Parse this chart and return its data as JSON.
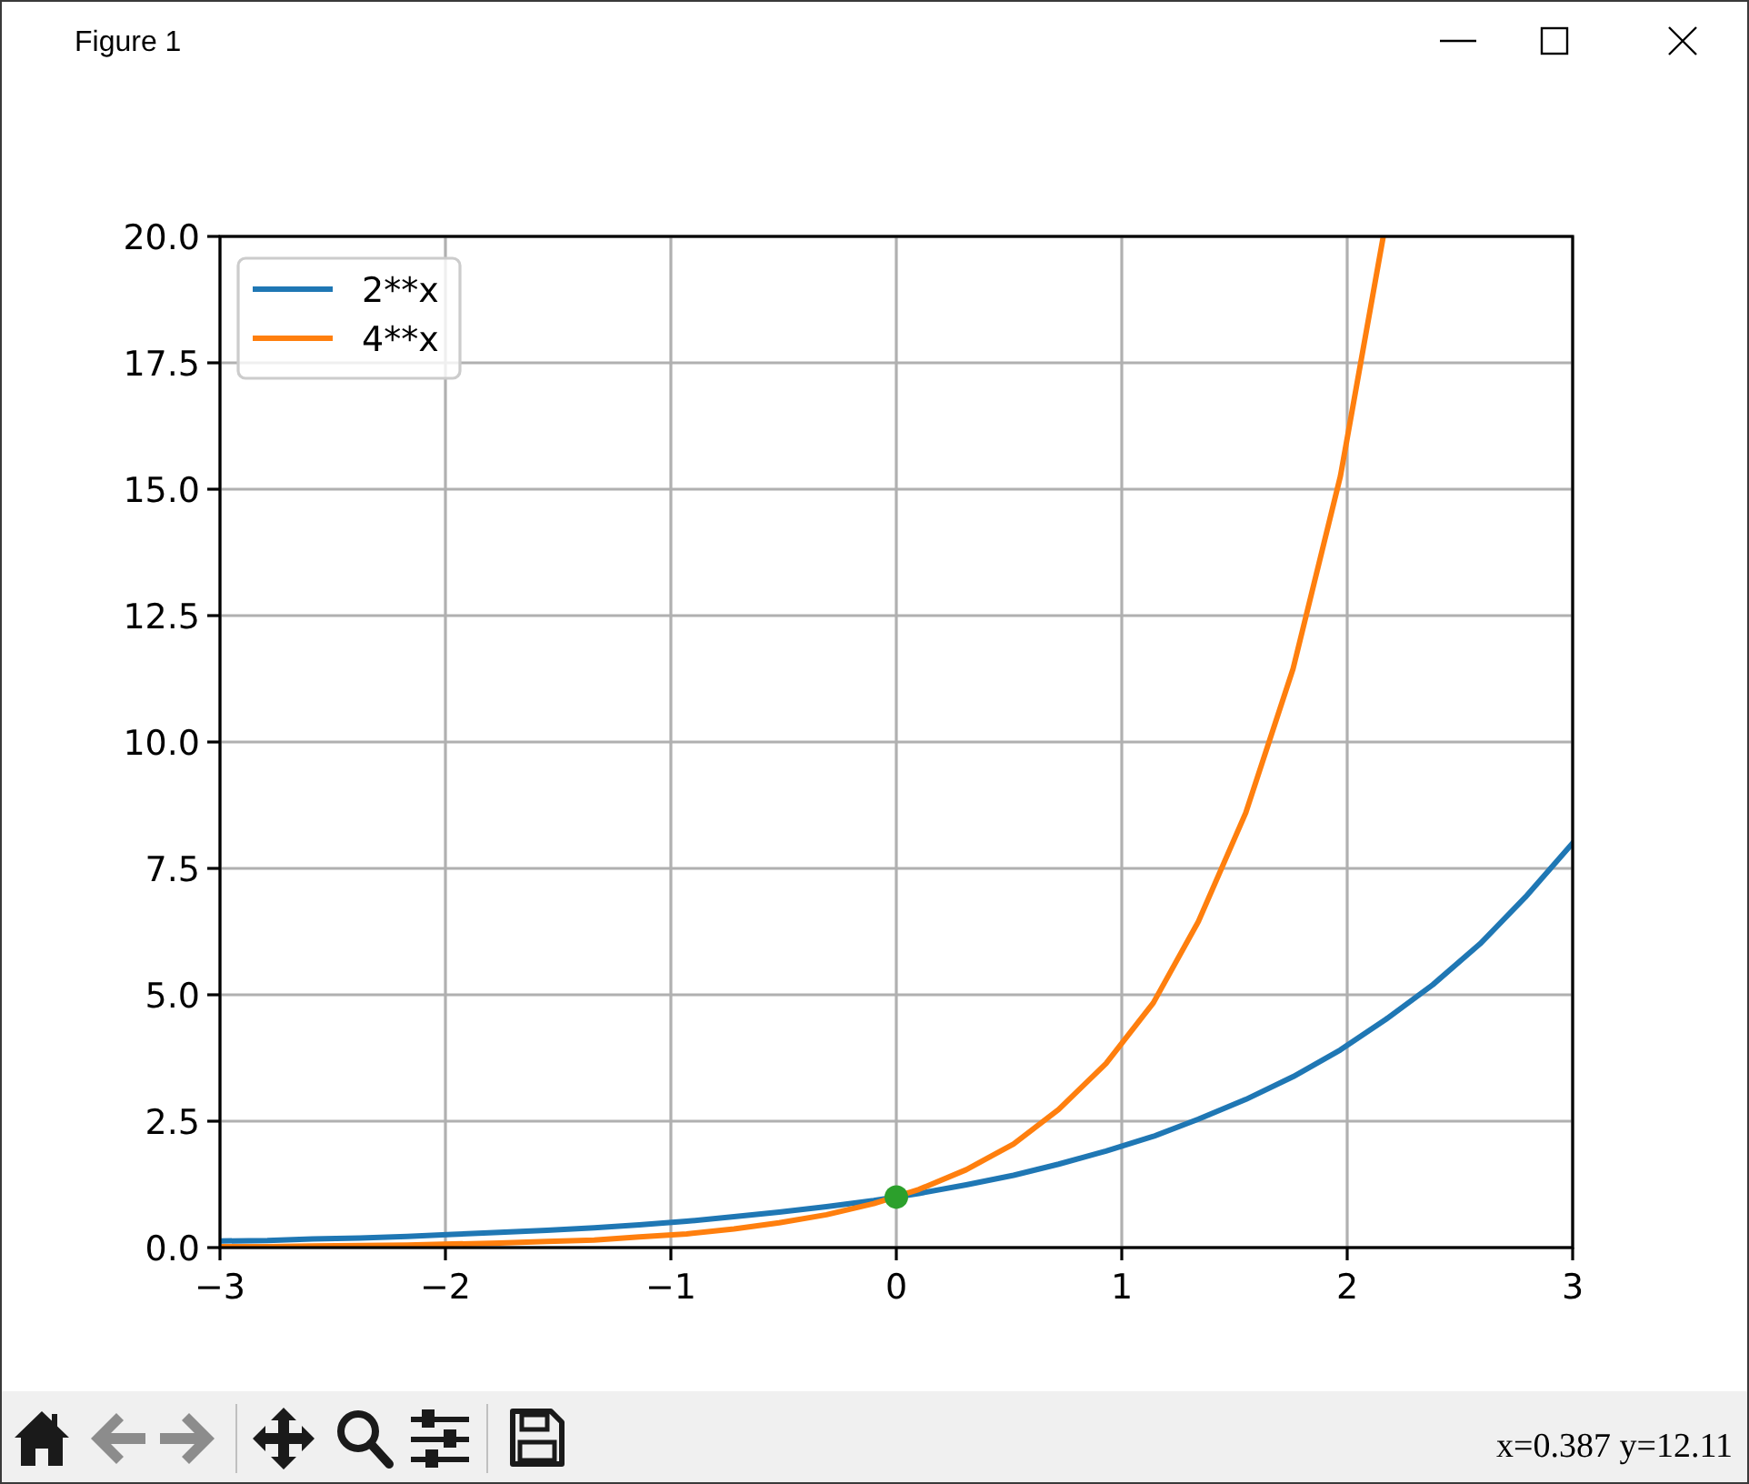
{
  "chart_data": {
    "type": "line",
    "title": "Figure 1",
    "x": [
      -3,
      -2.79,
      -2.59,
      -2.38,
      -2.17,
      -1.97,
      -1.76,
      -1.55,
      -1.34,
      -1.14,
      -0.93,
      -0.72,
      -0.52,
      -0.31,
      -0.1,
      0.1,
      0.31,
      0.52,
      0.72,
      0.93,
      1.14,
      1.34,
      1.55,
      1.76,
      1.97,
      2.17,
      2.38,
      2.59,
      2.79,
      3
    ],
    "series": [
      {
        "name": "2**x",
        "color": "#1f77b4",
        "values": [
          0.13,
          0.14,
          0.17,
          0.19,
          0.22,
          0.26,
          0.3,
          0.34,
          0.39,
          0.45,
          0.52,
          0.61,
          0.7,
          0.81,
          0.93,
          1.07,
          1.24,
          1.43,
          1.65,
          1.91,
          2.2,
          2.54,
          2.93,
          3.38,
          3.91,
          4.51,
          5.2,
          6.01,
          6.93,
          8
        ]
      },
      {
        "name": "4**x",
        "color": "#ff7f0e",
        "x": [
          -3,
          -2.79,
          -2.59,
          -2.38,
          -2.17,
          -1.97,
          -1.76,
          -1.55,
          -1.34,
          -1.14,
          -0.93,
          -0.72,
          -0.52,
          -0.31,
          -0.1,
          0.1,
          0.31,
          0.52,
          0.72,
          0.93,
          1.14,
          1.34,
          1.55,
          1.76,
          1.97,
          2.16
        ],
        "values": [
          0.02,
          0.02,
          0.03,
          0.04,
          0.05,
          0.07,
          0.09,
          0.12,
          0.15,
          0.21,
          0.27,
          0.37,
          0.49,
          0.65,
          0.87,
          1.15,
          1.54,
          2.05,
          2.73,
          3.64,
          4.84,
          6.45,
          8.6,
          11.45,
          15.26,
          20
        ]
      },
      {
        "type": "scatter",
        "color": "#2ca02c",
        "marker": "circle",
        "x": [
          0
        ],
        "values": [
          1
        ]
      }
    ],
    "xlim": [
      -3,
      3
    ],
    "xticks": [
      {
        "value": -3,
        "label": "−3"
      },
      {
        "value": -2,
        "label": "−2"
      },
      {
        "value": -1,
        "label": "−1"
      },
      0,
      1,
      2,
      3
    ],
    "ylim": [
      0,
      20
    ],
    "yticks": [
      {
        "value": 0,
        "label": "0.0"
      },
      2.5,
      {
        "value": 5,
        "label": "5.0"
      },
      7.5,
      {
        "value": 10,
        "label": "10.0"
      },
      12.5,
      {
        "value": 15,
        "label": "15.0"
      },
      17.5,
      {
        "value": 20,
        "label": "20.0"
      }
    ],
    "grid": true,
    "legend": "top left",
    "annotations": [
      "x=0.387 y=12.11"
    ]
  }
}
